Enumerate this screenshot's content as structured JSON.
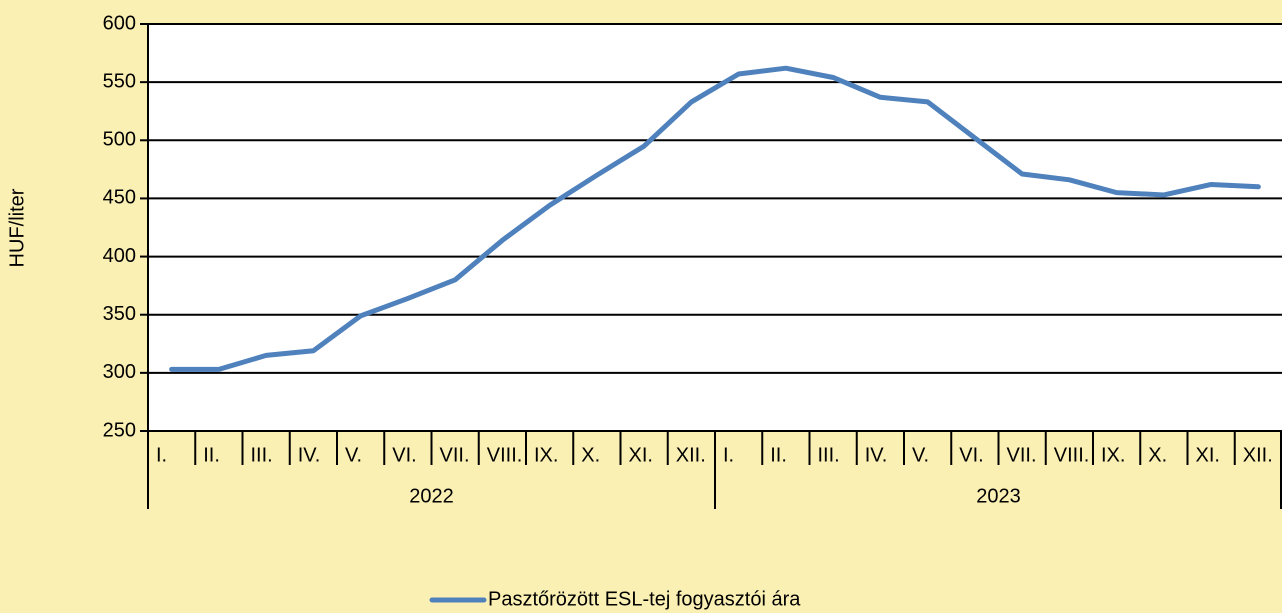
{
  "chart_data": {
    "type": "line",
    "y_label": "HUF/liter",
    "categories": [
      "I.",
      "II.",
      "III.",
      "IV.",
      "V.",
      "VI.",
      "VII.",
      "VIII.",
      "IX.",
      "X.",
      "XI.",
      "XII.",
      "I.",
      "II.",
      "III.",
      "IV.",
      "V.",
      "VI.",
      "VII.",
      "VIII.",
      "IX.",
      "X.",
      "XI.",
      "XII."
    ],
    "groups": [
      "2022",
      "2023"
    ],
    "series": [
      {
        "name": "Pasztőrözött ESL-tej fogyasztói ára",
        "color": "#4f81bd",
        "values": [
          303,
          303,
          315,
          319,
          349,
          364,
          380,
          414,
          444,
          470,
          495,
          533,
          557,
          562,
          554,
          537,
          533,
          502,
          471,
          466,
          455,
          453,
          462,
          460
        ]
      }
    ],
    "ylim": [
      250,
      600
    ],
    "yticks": [
      250,
      300,
      350,
      400,
      450,
      500,
      550,
      600
    ],
    "grid": true,
    "legend": "bottom"
  }
}
